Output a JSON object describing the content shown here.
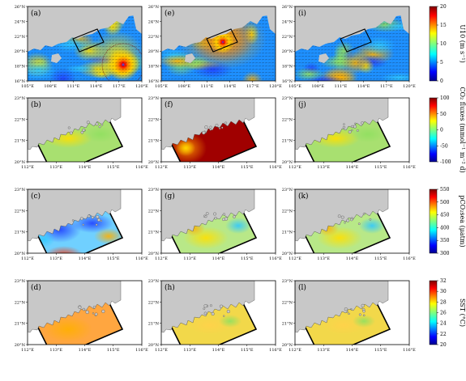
{
  "panels": [
    {
      "id": "a",
      "label": "(a)",
      "kind": "wind"
    },
    {
      "id": "e",
      "label": "(e)",
      "kind": "wind"
    },
    {
      "id": "i",
      "label": "(i)",
      "kind": "wind"
    },
    {
      "id": "b",
      "label": "(b)",
      "kind": "co2"
    },
    {
      "id": "f",
      "label": "(f)",
      "kind": "co2"
    },
    {
      "id": "j",
      "label": "(j)",
      "kind": "co2"
    },
    {
      "id": "c",
      "label": "(c)",
      "kind": "pco2"
    },
    {
      "id": "g",
      "label": "(g)",
      "kind": "pco2"
    },
    {
      "id": "k",
      "label": "(k)",
      "kind": "pco2"
    },
    {
      "id": "d",
      "label": "(d)",
      "kind": "sst"
    },
    {
      "id": "h",
      "label": "(h)",
      "kind": "sst"
    },
    {
      "id": "l",
      "label": "(l)",
      "kind": "sst"
    }
  ],
  "row1_axes": {
    "lat_ticks": [
      "26°N",
      "24°N",
      "22°N",
      "20°N",
      "18°N",
      "16°N"
    ],
    "lon_ticks": [
      "105°E",
      "108°E",
      "111°E",
      "114°E",
      "117°E",
      "120°E"
    ]
  },
  "zoom_axes": {
    "lat_ticks": [
      "23°N",
      "22°N",
      "21°N",
      "20°N"
    ],
    "lon_ticks": [
      "112°E",
      "113°E",
      "114°E",
      "115°E",
      "116°E"
    ]
  },
  "colorbars": [
    {
      "id": "u10",
      "label": "U10 (m s⁻¹)",
      "ticks": [
        "20",
        "15",
        "10",
        "5",
        "0"
      ]
    },
    {
      "id": "co2",
      "label": "CO₂ fluxes (mmol⁻¹ m⁻² d)",
      "ticks": [
        "100",
        "50",
        "0",
        "-50",
        "-100"
      ]
    },
    {
      "id": "pco2",
      "label": "pCO₂sea (μatm)",
      "ticks": [
        "550",
        "500",
        "450",
        "400",
        "350",
        "300"
      ]
    },
    {
      "id": "sst",
      "label": "SST (°C)",
      "ticks": [
        "32",
        "30",
        "28",
        "26",
        "24",
        "22",
        "20"
      ]
    }
  ],
  "colors": {
    "land": "#c8c8c8",
    "frame": "#000000"
  }
}
